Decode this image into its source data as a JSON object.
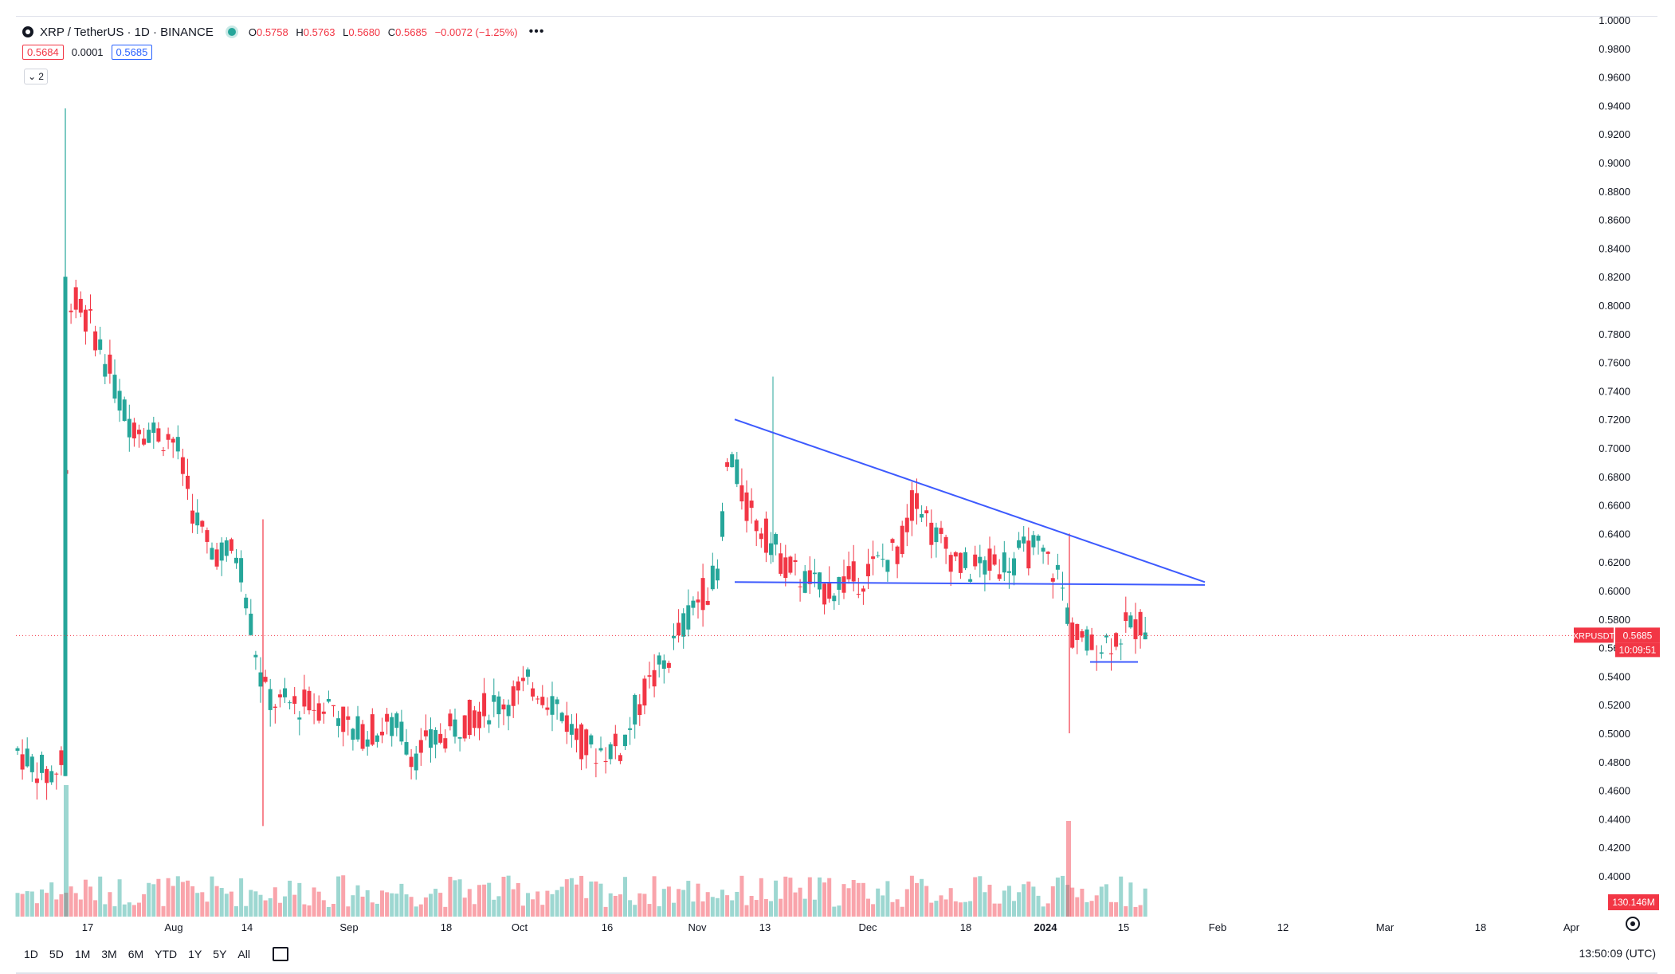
{
  "header": {
    "symbol_title": "XRP / TetherUS · 1D · BINANCE",
    "ohlc": {
      "o_label": "O",
      "o": "0.5758",
      "h_label": "H",
      "h": "0.5763",
      "l_label": "L",
      "l": "0.5680",
      "c_label": "C",
      "c": "0.5685",
      "change": "−0.0072 (−1.25%)"
    },
    "bid": "0.5684",
    "spread": "0.0001",
    "ask": "0.5685",
    "indicators_count": "2"
  },
  "colors": {
    "up": "#26a69a",
    "down": "#f23645",
    "trendline": "#3d5afe",
    "bg": "#ffffff"
  },
  "price_axis": {
    "ticks": [
      "1.0000",
      "0.9800",
      "0.9600",
      "0.9400",
      "0.9200",
      "0.9000",
      "0.8800",
      "0.8600",
      "0.8400",
      "0.8200",
      "0.8000",
      "0.7800",
      "0.7600",
      "0.7400",
      "0.7200",
      "0.7000",
      "0.6800",
      "0.6600",
      "0.6400",
      "0.6200",
      "0.6000",
      "0.5800",
      "0.5600",
      "0.5400",
      "0.5200",
      "0.5000",
      "0.4800",
      "0.4600",
      "0.4400",
      "0.4200",
      "0.4000"
    ],
    "symbol_tag": "XRPUSDT",
    "last_price": "0.5685",
    "countdown": "10:09:51",
    "volume_tag": "130.146M"
  },
  "time_axis": {
    "labels": [
      "17",
      "Aug",
      "14",
      "Sep",
      "18",
      "Oct",
      "16",
      "Nov",
      "13",
      "Dec",
      "18",
      "2024",
      "15",
      "Feb",
      "12",
      "Mar",
      "18",
      "Apr"
    ]
  },
  "timeframes": [
    "1D",
    "5D",
    "1M",
    "3M",
    "6M",
    "YTD",
    "1Y",
    "5Y",
    "All"
  ],
  "clock": "13:50:09 (UTC)",
  "chart_data": {
    "type": "candlestick",
    "symbol": "XRP / TetherUS",
    "interval": "1D",
    "exchange": "BINANCE",
    "ylim": [
      0.39,
      1.0
    ],
    "last_price": 0.5685,
    "trendlines": [
      {
        "kind": "descending-resistance",
        "from": [
          "2023-11-07",
          0.72
        ],
        "to": [
          "2024-01-26",
          0.605
        ]
      },
      {
        "kind": "horizontal-support",
        "from": [
          "2023-11-07",
          0.605
        ],
        "to": [
          "2024-01-26",
          0.605
        ]
      },
      {
        "kind": "horizontal-support",
        "from": [
          "2024-01-08",
          0.55
        ],
        "to": [
          "2024-01-14",
          0.55
        ]
      }
    ]
  }
}
